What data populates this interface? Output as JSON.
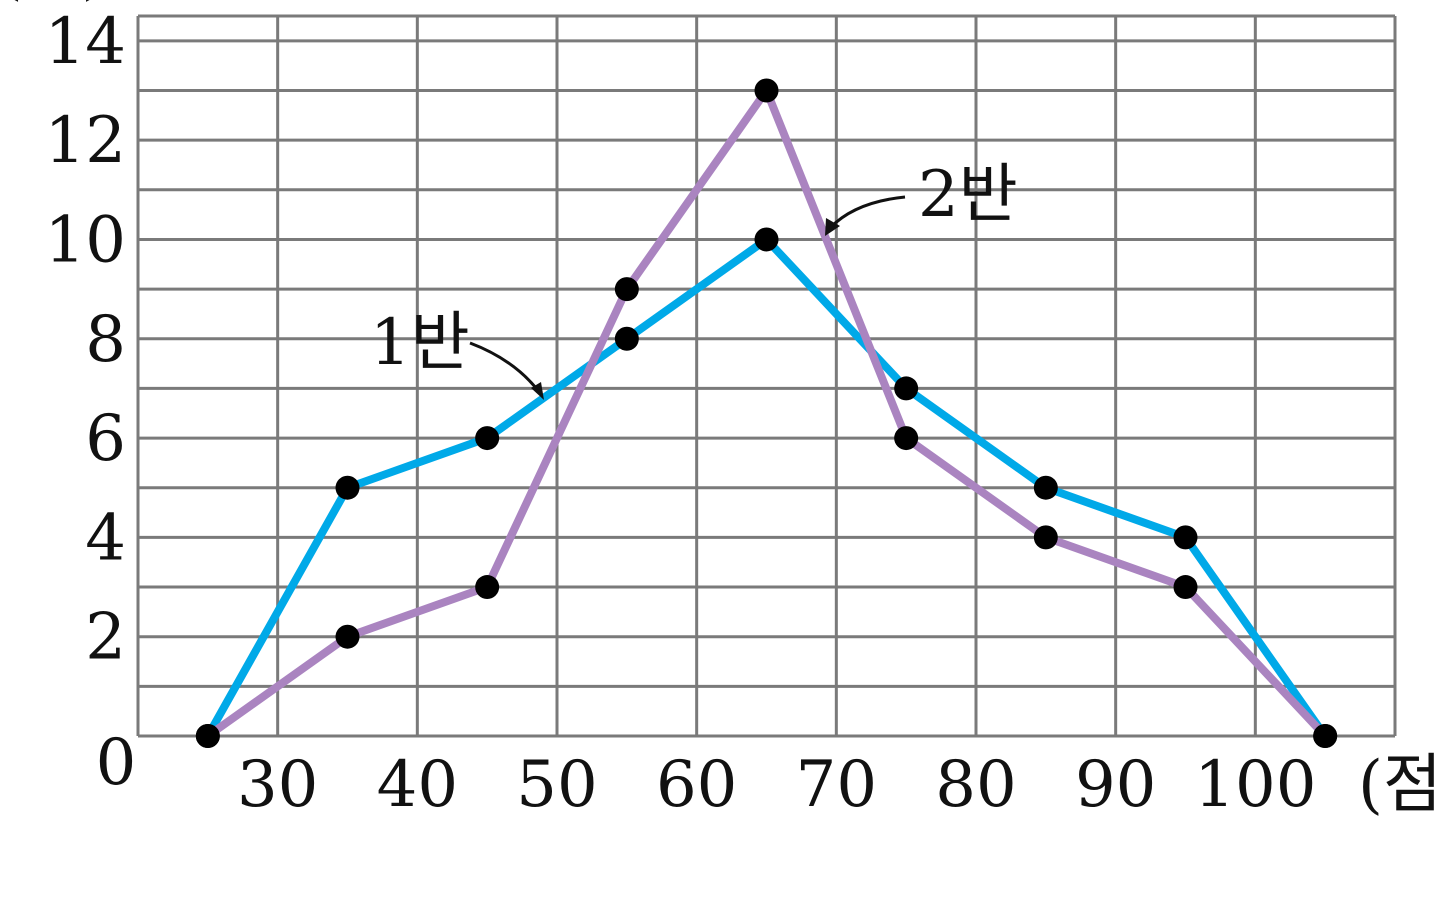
{
  "chart_data": {
    "type": "line",
    "title": "",
    "xlabel": "(점)",
    "ylabel": "(명)",
    "x_ticks": [
      "30",
      "40",
      "50",
      "60",
      "70",
      "80",
      "90",
      "100"
    ],
    "y_ticks": [
      "0",
      "2",
      "4",
      "6",
      "8",
      "10",
      "12",
      "14"
    ],
    "xlim": [
      20,
      110
    ],
    "ylim": [
      0,
      14.5
    ],
    "grid": true,
    "x": [
      25,
      35,
      45,
      55,
      65,
      75,
      85,
      95,
      105
    ],
    "series": [
      {
        "name": "1반",
        "color": "#00a9e8",
        "values": [
          0,
          5,
          6,
          8,
          10,
          7,
          5,
          4,
          0
        ]
      },
      {
        "name": "2반",
        "color": "#aa84c0",
        "values": [
          0,
          2,
          3,
          9,
          13,
          6,
          4,
          3,
          0
        ]
      }
    ],
    "annotations": [
      {
        "text": "1반",
        "series": "1반"
      },
      {
        "text": "2반",
        "series": "2반"
      }
    ]
  }
}
